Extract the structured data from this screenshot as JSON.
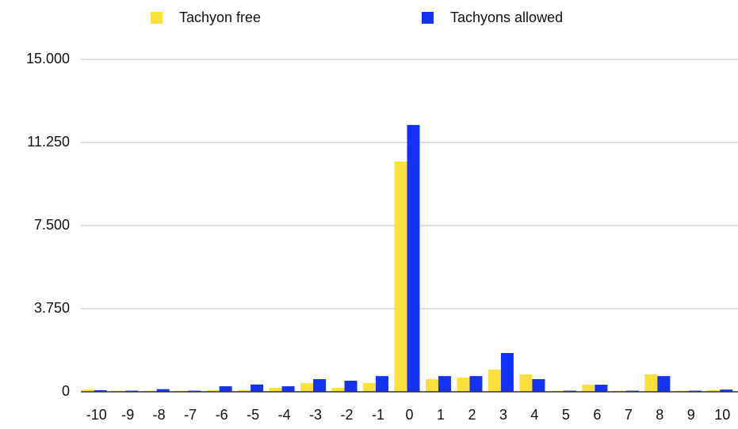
{
  "chart_data": {
    "type": "bar",
    "categories": [
      "-10",
      "-9",
      "-8",
      "-7",
      "-6",
      "-5",
      "-4",
      "-3",
      "-2",
      "-1",
      "0",
      "1",
      "2",
      "3",
      "4",
      "5",
      "6",
      "7",
      "8",
      "9",
      "10"
    ],
    "series": [
      {
        "name": "Tachyon free",
        "color": "#fde03c",
        "values": [
          100,
          50,
          50,
          50,
          80,
          80,
          180,
          390,
          180,
          400,
          10390,
          570,
          640,
          1000,
          790,
          50,
          320,
          50,
          790,
          50,
          70
        ]
      },
      {
        "name": "Tachyons allowed",
        "color": "#1533f5",
        "values": [
          70,
          50,
          120,
          50,
          250,
          330,
          250,
          570,
          500,
          710,
          12040,
          710,
          710,
          1750,
          570,
          50,
          320,
          50,
          710,
          50,
          100
        ]
      }
    ],
    "ylim": [
      0,
      15000
    ],
    "yticks": [
      0,
      {
        "value": 3750,
        "label": "3.750"
      },
      {
        "value": 7500,
        "label": "7.500"
      },
      {
        "value": 11250,
        "label": "11.250"
      },
      {
        "value": 15000,
        "label": "15.000"
      }
    ],
    "grid": true,
    "legend": "top"
  }
}
